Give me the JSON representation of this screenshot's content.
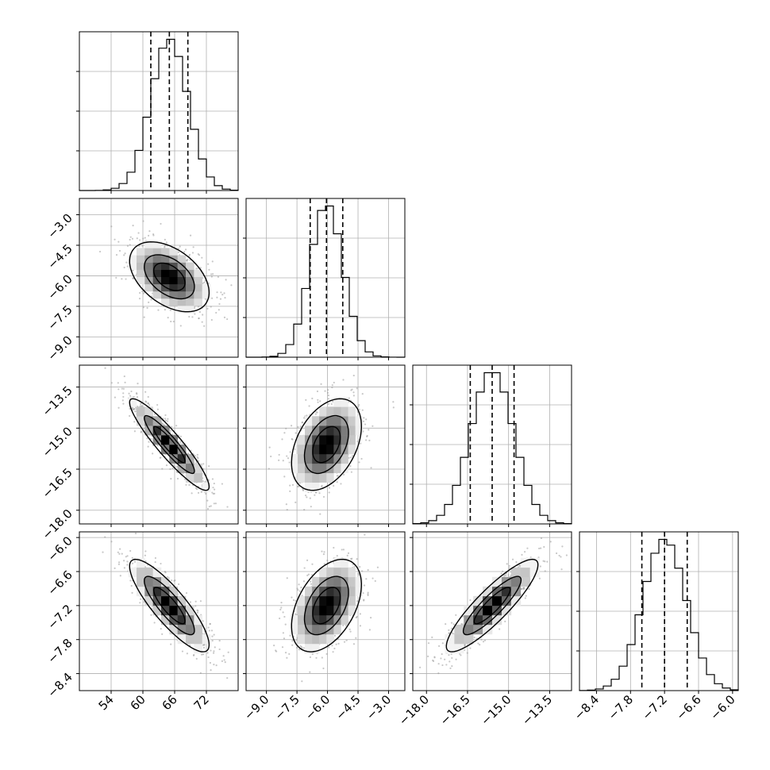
{
  "chart_data": {
    "type": "corner",
    "n_params": 4,
    "quantiles": [
      0.16,
      0.5,
      0.84
    ],
    "parameters": [
      {
        "index": 0,
        "range": [
          48,
          78
        ],
        "ticks": [
          54,
          60,
          66,
          72
        ],
        "tick_labels": [
          "54",
          "60",
          "66",
          "72"
        ],
        "mean": 65,
        "sd": 3.5,
        "quantile_values": [
          61.5,
          65.0,
          68.5
        ]
      },
      {
        "index": 1,
        "range": [
          -10.0,
          -2.2
        ],
        "ticks": [
          -9.0,
          -7.5,
          -6.0,
          -4.5,
          -3.0
        ],
        "tick_labels": [
          "−9.0",
          "−7.5",
          "−6.0",
          "−4.5",
          "−3.0"
        ],
        "mean": -6.05,
        "sd": 0.8,
        "quantile_values": [
          -6.85,
          -6.05,
          -5.25
        ]
      },
      {
        "index": 2,
        "range": [
          -18.5,
          -12.7
        ],
        "ticks": [
          -18.0,
          -16.5,
          -15.0,
          -13.5
        ],
        "tick_labels": [
          "−18.0",
          "−16.5",
          "−15.0",
          "−13.5"
        ],
        "mean": -15.6,
        "sd": 0.78,
        "quantile_values": [
          -16.4,
          -15.6,
          -14.8
        ]
      },
      {
        "index": 3,
        "range": [
          -8.7,
          -5.9
        ],
        "ticks": [
          -8.4,
          -7.8,
          -7.2,
          -6.6,
          -6.0
        ],
        "tick_labels": [
          "−8.4",
          "−7.8",
          "−7.2",
          "−6.6",
          "−6.0"
        ],
        "mean": -7.2,
        "sd": 0.38,
        "quantile_values": [
          -7.6,
          -7.2,
          -6.8
        ]
      }
    ],
    "correlations": [
      [
        1.0,
        -0.45,
        -0.92,
        -0.85
      ],
      [
        -0.45,
        1.0,
        0.4,
        0.45
      ],
      [
        -0.92,
        0.4,
        1.0,
        0.88
      ],
      [
        -0.85,
        0.45,
        0.88,
        1.0
      ]
    ],
    "grid": true,
    "bins": 20,
    "n_scatter_points": 600
  }
}
